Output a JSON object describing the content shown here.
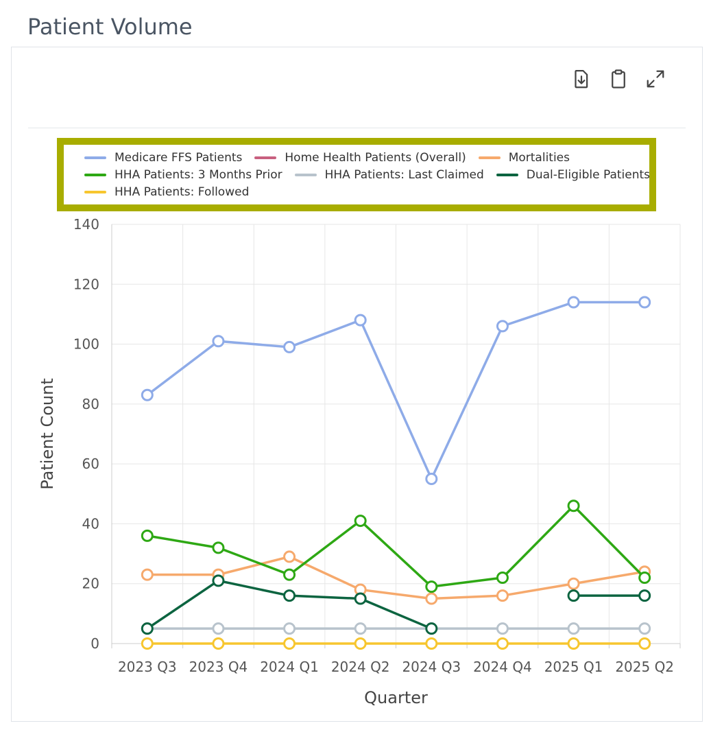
{
  "page": {
    "title": "Patient Volume"
  },
  "toolbar": {
    "icons": [
      "download-icon",
      "clipboard-icon",
      "expand-icon"
    ]
  },
  "chart_data": {
    "type": "line",
    "title": "",
    "xlabel": "Quarter",
    "ylabel": "Patient Count",
    "ylim": [
      0,
      140
    ],
    "yticks": [
      0,
      20,
      40,
      60,
      80,
      100,
      120,
      140
    ],
    "grid": true,
    "legend_position": "top",
    "categories": [
      "2023 Q3",
      "2023 Q4",
      "2024 Q1",
      "2024 Q2",
      "2024 Q3",
      "2024 Q4",
      "2025 Q1",
      "2025 Q2"
    ],
    "series": [
      {
        "name": "Medicare FFS Patients",
        "color": "#8eabe8",
        "values": [
          83,
          101,
          99,
          108,
          55,
          106,
          114,
          114
        ]
      },
      {
        "name": "Home Health Patients (Overall)",
        "color": "#c8607f",
        "values": [
          null,
          null,
          null,
          null,
          null,
          null,
          null,
          null
        ]
      },
      {
        "name": "Mortalities",
        "color": "#f6a96c",
        "values": [
          23,
          23,
          29,
          18,
          15,
          16,
          20,
          24
        ]
      },
      {
        "name": "HHA Patients: 3 Months Prior",
        "color": "#2ea814",
        "values": [
          36,
          32,
          23,
          41,
          19,
          22,
          46,
          22
        ]
      },
      {
        "name": "HHA Patients: Last Claimed",
        "color": "#b8c3cc",
        "values": [
          5,
          5,
          5,
          5,
          5,
          5,
          5,
          5
        ]
      },
      {
        "name": "Dual-Eligible Patients",
        "color": "#0c6440",
        "values": [
          5,
          21,
          16,
          15,
          5,
          null,
          16,
          16
        ]
      },
      {
        "name": "HHA Patients: Followed",
        "color": "#f7c62f",
        "values": [
          0,
          0,
          0,
          0,
          0,
          0,
          0,
          0
        ]
      }
    ]
  }
}
